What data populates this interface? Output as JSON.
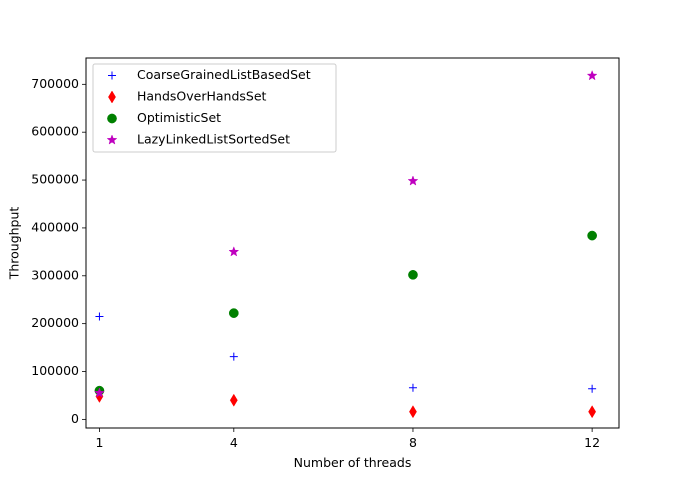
{
  "chart_data": {
    "type": "scatter",
    "title": "",
    "xlabel": "Number of threads",
    "ylabel": "Throughput",
    "x": [
      1,
      4,
      8,
      12
    ],
    "x_tick_labels": [
      "1",
      "4",
      "8",
      "12"
    ],
    "xlim": [
      0.7,
      12.6
    ],
    "ylim": [
      -18000,
      755000
    ],
    "y_ticks": [
      0,
      100000,
      200000,
      300000,
      400000,
      500000,
      600000,
      700000
    ],
    "y_tick_labels": [
      "0",
      "100000",
      "200000",
      "300000",
      "400000",
      "500000",
      "600000",
      "700000"
    ],
    "grid": false,
    "legend_position": "upper-left",
    "series": [
      {
        "name": "CoarseGrainedListBasedSet",
        "marker": "plus",
        "color": "#0000ff",
        "values": [
          215000,
          131000,
          66000,
          64000
        ]
      },
      {
        "name": "HandsOverHandsSet",
        "marker": "thin-diamond",
        "color": "#ff0000",
        "values": [
          48000,
          40000,
          16000,
          16000
        ]
      },
      {
        "name": "OptimisticSet",
        "marker": "circle",
        "color": "#008000",
        "values": [
          60000,
          222000,
          302000,
          384000
        ]
      },
      {
        "name": "LazyLinkedListSortedSet",
        "marker": "star",
        "color": "#bf00bf",
        "values": [
          55000,
          350000,
          498000,
          718000
        ]
      }
    ]
  }
}
